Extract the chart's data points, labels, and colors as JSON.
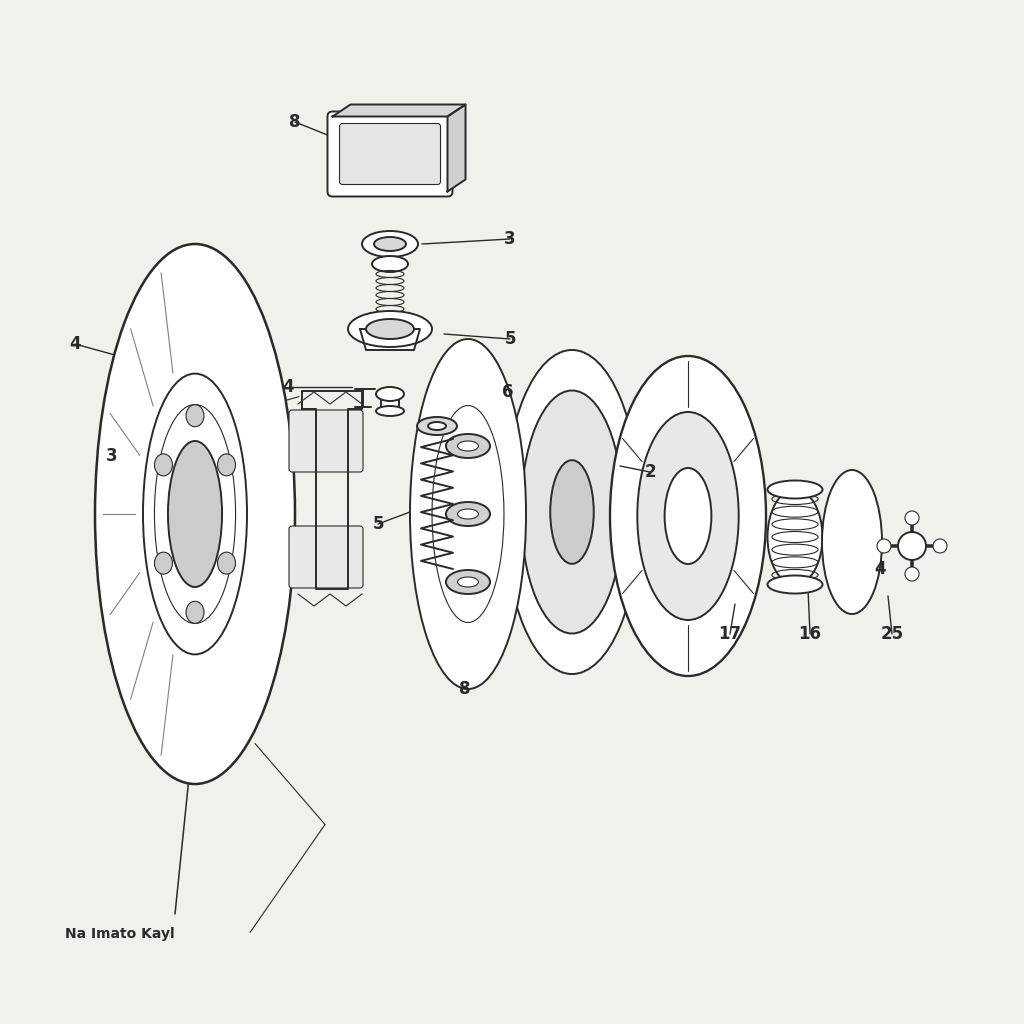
{
  "bg_color": "#f0f0ec",
  "line_color": "#2a2a2a",
  "line_width": 1.4,
  "thin_lw": 0.8,
  "label_fontsize": 12,
  "label_fontweight": "bold",
  "caption_text": "Na Imato Kayl",
  "caption_fontsize": 10,
  "caption_fontweight": "bold"
}
